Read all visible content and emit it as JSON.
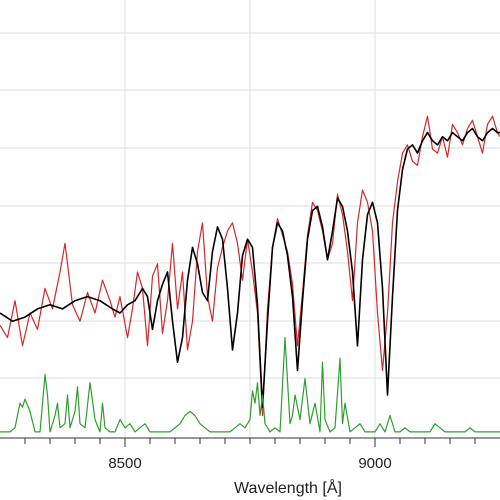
{
  "chart_data": {
    "type": "line",
    "title": "",
    "xlabel": "Wavelength [Å]",
    "ylabel": "",
    "xlim": [
      8250,
      9250
    ],
    "ylim": [
      0,
      1
    ],
    "grid": true,
    "x_ticks": [
      {
        "value": 8500,
        "label": "8500"
      },
      {
        "value": 9000,
        "label": "9000"
      }
    ],
    "colors": {
      "observed": "#d62728",
      "model": "#000000",
      "residual": "#2ca02c",
      "grid": "#dddddd",
      "axis": "#333333"
    },
    "series": [
      {
        "color": "#d62728",
        "x": [
          8250,
          8265,
          8280,
          8295,
          8310,
          8325,
          8340,
          8355,
          8370,
          8380,
          8395,
          8410,
          8425,
          8440,
          8455,
          8470,
          8480,
          8490,
          8505,
          8515,
          8525,
          8535,
          8545,
          8555,
          8565,
          8575,
          8585,
          8595,
          8605,
          8615,
          8625,
          8635,
          8645,
          8655,
          8665,
          8675,
          8685,
          8695,
          8705,
          8715,
          8725,
          8735,
          8745,
          8755,
          8765,
          8775,
          8785,
          8795,
          8805,
          8815,
          8825,
          8835,
          8845,
          8855,
          8865,
          8875,
          8885,
          8895,
          8905,
          8915,
          8925,
          8935,
          8945,
          8955,
          8965,
          8975,
          8985,
          8995,
          9005,
          9015,
          9025,
          9035,
          9045,
          9055,
          9065,
          9075,
          9085,
          9095,
          9105,
          9115,
          9125,
          9135,
          9145,
          9155,
          9165,
          9175,
          9185,
          9195,
          9205,
          9215,
          9225,
          9235,
          9245,
          9250
        ],
        "y": [
          0.27,
          0.24,
          0.33,
          0.22,
          0.3,
          0.26,
          0.36,
          0.31,
          0.4,
          0.47,
          0.32,
          0.28,
          0.35,
          0.3,
          0.38,
          0.33,
          0.29,
          0.34,
          0.24,
          0.31,
          0.4,
          0.36,
          0.22,
          0.39,
          0.42,
          0.25,
          0.33,
          0.47,
          0.31,
          0.4,
          0.21,
          0.28,
          0.45,
          0.52,
          0.34,
          0.28,
          0.41,
          0.46,
          0.5,
          0.52,
          0.47,
          0.38,
          0.48,
          0.4,
          0.3,
          0.05,
          0.31,
          0.46,
          0.53,
          0.49,
          0.45,
          0.37,
          0.22,
          0.35,
          0.49,
          0.57,
          0.55,
          0.5,
          0.43,
          0.47,
          0.59,
          0.54,
          0.45,
          0.33,
          0.52,
          0.6,
          0.57,
          0.5,
          0.3,
          0.16,
          0.3,
          0.52,
          0.62,
          0.69,
          0.71,
          0.67,
          0.66,
          0.73,
          0.78,
          0.7,
          0.69,
          0.73,
          0.68,
          0.76,
          0.74,
          0.71,
          0.75,
          0.77,
          0.73,
          0.69,
          0.76,
          0.78,
          0.74,
          0.73
        ]
      },
      {
        "color": "#000000",
        "x": [
          8250,
          8275,
          8300,
          8325,
          8350,
          8375,
          8400,
          8425,
          8450,
          8475,
          8490,
          8505,
          8520,
          8535,
          8545,
          8555,
          8565,
          8575,
          8585,
          8595,
          8605,
          8615,
          8625,
          8635,
          8645,
          8655,
          8665,
          8675,
          8685,
          8695,
          8705,
          8715,
          8725,
          8735,
          8745,
          8755,
          8765,
          8775,
          8785,
          8795,
          8805,
          8815,
          8825,
          8835,
          8845,
          8855,
          8865,
          8875,
          8885,
          8895,
          8905,
          8915,
          8925,
          8935,
          8945,
          8955,
          8965,
          8975,
          8985,
          8995,
          9005,
          9015,
          9025,
          9035,
          9045,
          9055,
          9065,
          9075,
          9085,
          9095,
          9105,
          9115,
          9125,
          9135,
          9145,
          9155,
          9165,
          9175,
          9185,
          9195,
          9205,
          9215,
          9225,
          9235,
          9245,
          9250
        ],
        "y": [
          0.3,
          0.28,
          0.29,
          0.31,
          0.32,
          0.31,
          0.33,
          0.34,
          0.33,
          0.31,
          0.3,
          0.32,
          0.33,
          0.36,
          0.34,
          0.26,
          0.33,
          0.37,
          0.4,
          0.28,
          0.18,
          0.24,
          0.38,
          0.46,
          0.42,
          0.35,
          0.33,
          0.45,
          0.51,
          0.48,
          0.36,
          0.21,
          0.3,
          0.44,
          0.48,
          0.46,
          0.32,
          0.07,
          0.28,
          0.46,
          0.52,
          0.5,
          0.44,
          0.34,
          0.16,
          0.33,
          0.48,
          0.55,
          0.56,
          0.51,
          0.43,
          0.5,
          0.58,
          0.56,
          0.5,
          0.4,
          0.22,
          0.43,
          0.54,
          0.57,
          0.52,
          0.36,
          0.1,
          0.34,
          0.55,
          0.65,
          0.7,
          0.71,
          0.69,
          0.72,
          0.74,
          0.72,
          0.71,
          0.73,
          0.72,
          0.74,
          0.73,
          0.72,
          0.74,
          0.75,
          0.73,
          0.72,
          0.74,
          0.75,
          0.74,
          0.74
        ]
      },
      {
        "color": "#2ca02c",
        "x": [
          8250,
          8260,
          8270,
          8280,
          8290,
          8295,
          8300,
          8310,
          8320,
          8330,
          8340,
          8345,
          8350,
          8360,
          8365,
          8370,
          8380,
          8385,
          8390,
          8400,
          8405,
          8410,
          8420,
          8430,
          8440,
          8450,
          8455,
          8460,
          8470,
          8480,
          8490,
          8500,
          8510,
          8520,
          8530,
          8540,
          8550,
          8560,
          8570,
          8580,
          8590,
          8600,
          8610,
          8620,
          8630,
          8640,
          8650,
          8660,
          8670,
          8680,
          8690,
          8700,
          8710,
          8720,
          8730,
          8740,
          8750,
          8755,
          8760,
          8765,
          8770,
          8775,
          8780,
          8785,
          8790,
          8800,
          8810,
          8820,
          8830,
          8835,
          8840,
          8850,
          8860,
          8870,
          8880,
          8890,
          8895,
          8900,
          8910,
          8920,
          8930,
          8935,
          8940,
          8950,
          8960,
          8970,
          8980,
          8990,
          9000,
          9010,
          9020,
          9030,
          9040,
          9050,
          9060,
          9070,
          9080,
          9090,
          9100,
          9110,
          9120,
          9130,
          9140,
          9150,
          9160,
          9170,
          9180,
          9190,
          9200,
          9210,
          9220,
          9230,
          9240,
          9250
        ],
        "y": [
          0.01,
          0.01,
          0.01,
          0.02,
          0.08,
          0.07,
          0.09,
          0.06,
          0.01,
          0.01,
          0.15,
          0.1,
          0.01,
          0.05,
          0.08,
          0.02,
          0.03,
          0.1,
          0.02,
          0.06,
          0.12,
          0.03,
          0.02,
          0.13,
          0.04,
          0.01,
          0.08,
          0.02,
          0.01,
          0.01,
          0.04,
          0.02,
          0.03,
          0.01,
          0.02,
          0.03,
          0.01,
          0.01,
          0.01,
          0.01,
          0.01,
          0.02,
          0.03,
          0.05,
          0.06,
          0.05,
          0.03,
          0.02,
          0.01,
          0.01,
          0.01,
          0.01,
          0.01,
          0.02,
          0.03,
          0.02,
          0.04,
          0.11,
          0.08,
          0.13,
          0.05,
          0.1,
          0.03,
          0.02,
          0.01,
          0.02,
          0.01,
          0.24,
          0.03,
          0.05,
          0.1,
          0.04,
          0.14,
          0.03,
          0.08,
          0.01,
          0.18,
          0.04,
          0.01,
          0.02,
          0.19,
          0.03,
          0.08,
          0.01,
          0.02,
          0.03,
          0.01,
          0.01,
          0.01,
          0.03,
          0.01,
          0.05,
          0.01,
          0.01,
          0.02,
          0.01,
          0.01,
          0.01,
          0.01,
          0.01,
          0.03,
          0.02,
          0.01,
          0.01,
          0.01,
          0.01,
          0.01,
          0.02,
          0.01,
          0.01,
          0.01,
          0.01,
          0.01,
          0.01
        ]
      }
    ]
  }
}
